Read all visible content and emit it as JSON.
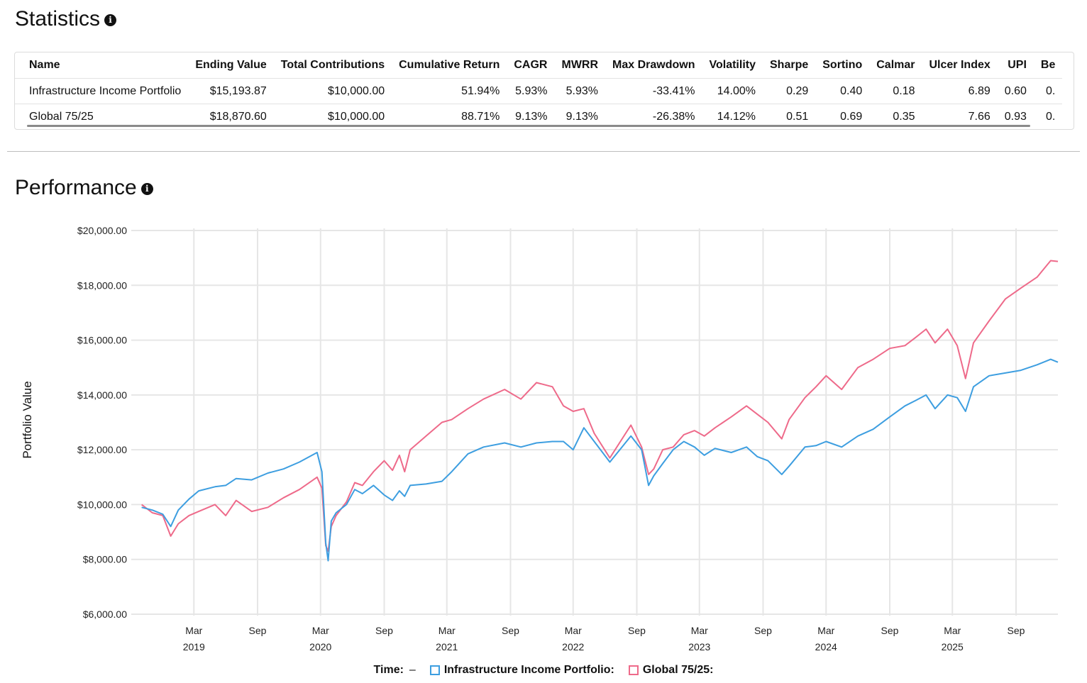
{
  "statistics": {
    "title": "Statistics",
    "info_icon": "info-icon",
    "columns": [
      "Name",
      "Ending Value",
      "Total Contributions",
      "Cumulative Return",
      "CAGR",
      "MWRR",
      "Max Drawdown",
      "Volatility",
      "Sharpe",
      "Sortino",
      "Calmar",
      "Ulcer Index",
      "UPI",
      "Be"
    ],
    "rows": [
      [
        "Infrastructure Income Portfolio",
        "$15,193.87",
        "$10,000.00",
        "51.94%",
        "5.93%",
        "5.93%",
        "-33.41%",
        "14.00%",
        "0.29",
        "0.40",
        "0.18",
        "6.89",
        "0.60",
        "0."
      ],
      [
        "Global 75/25",
        "$18,870.60",
        "$10,000.00",
        "88.71%",
        "9.13%",
        "9.13%",
        "-26.38%",
        "14.12%",
        "0.51",
        "0.69",
        "0.35",
        "7.66",
        "0.93",
        "0."
      ]
    ]
  },
  "performance": {
    "title": "Performance",
    "info_icon": "info-icon",
    "legend": {
      "time_label": "Time:",
      "time_value": "–",
      "series1_label": "Infrastructure Income Portfolio:",
      "series2_label": "Global 75/25:"
    }
  },
  "chart_data": {
    "type": "line",
    "title": "",
    "xlabel": "",
    "ylabel": "Portfolio Value",
    "ylim": [
      6000,
      20000
    ],
    "xlim": [
      "2018-09-01",
      "2025-12-31"
    ],
    "y_ticks": [
      "$6,000.00",
      "$8,000.00",
      "$10,000.00",
      "$12,000.00",
      "$14,000.00",
      "$16,000.00",
      "$18,000.00",
      "$20,000.00"
    ],
    "x_ticks": [
      {
        "date": "2019-03-01",
        "month": "Mar",
        "year": "2019"
      },
      {
        "date": "2019-09-01",
        "month": "Sep",
        "year": ""
      },
      {
        "date": "2020-03-01",
        "month": "Mar",
        "year": "2020"
      },
      {
        "date": "2020-09-01",
        "month": "Sep",
        "year": ""
      },
      {
        "date": "2021-03-01",
        "month": "Mar",
        "year": "2021"
      },
      {
        "date": "2021-09-01",
        "month": "Sep",
        "year": ""
      },
      {
        "date": "2022-03-01",
        "month": "Mar",
        "year": "2022"
      },
      {
        "date": "2022-09-01",
        "month": "Sep",
        "year": ""
      },
      {
        "date": "2023-03-01",
        "month": "Mar",
        "year": "2023"
      },
      {
        "date": "2023-09-01",
        "month": "Sep",
        "year": ""
      },
      {
        "date": "2024-03-01",
        "month": "Mar",
        "year": "2024"
      },
      {
        "date": "2024-09-01",
        "month": "Sep",
        "year": ""
      },
      {
        "date": "2025-03-01",
        "month": "Mar",
        "year": "2025"
      },
      {
        "date": "2025-09-01",
        "month": "Sep",
        "year": ""
      }
    ],
    "grid": true,
    "legend_position": "bottom",
    "series": [
      {
        "name": "Infrastructure Income Portfolio",
        "color": "#3d9ee0",
        "points": [
          [
            "2018-10-01",
            9900
          ],
          [
            "2018-11-01",
            9800
          ],
          [
            "2018-12-01",
            9650
          ],
          [
            "2018-12-24",
            9200
          ],
          [
            "2019-01-15",
            9800
          ],
          [
            "2019-02-15",
            10200
          ],
          [
            "2019-03-15",
            10500
          ],
          [
            "2019-05-01",
            10650
          ],
          [
            "2019-06-01",
            10700
          ],
          [
            "2019-07-01",
            10950
          ],
          [
            "2019-08-15",
            10900
          ],
          [
            "2019-10-01",
            11150
          ],
          [
            "2019-11-15",
            11300
          ],
          [
            "2019-12-31",
            11550
          ],
          [
            "2020-02-20",
            11900
          ],
          [
            "2020-03-05",
            11200
          ],
          [
            "2020-03-16",
            8600
          ],
          [
            "2020-03-23",
            7950
          ],
          [
            "2020-04-01",
            9400
          ],
          [
            "2020-04-15",
            9700
          ],
          [
            "2020-05-15",
            10000
          ],
          [
            "2020-06-08",
            10550
          ],
          [
            "2020-06-30",
            10400
          ],
          [
            "2020-08-01",
            10700
          ],
          [
            "2020-09-01",
            10350
          ],
          [
            "2020-09-25",
            10150
          ],
          [
            "2020-10-15",
            10500
          ],
          [
            "2020-10-30",
            10300
          ],
          [
            "2020-11-15",
            10700
          ],
          [
            "2020-12-31",
            10750
          ],
          [
            "2021-02-15",
            10850
          ],
          [
            "2021-03-15",
            11200
          ],
          [
            "2021-05-01",
            11850
          ],
          [
            "2021-06-15",
            12100
          ],
          [
            "2021-08-15",
            12250
          ],
          [
            "2021-10-01",
            12100
          ],
          [
            "2021-11-15",
            12250
          ],
          [
            "2021-12-31",
            12300
          ],
          [
            "2022-02-01",
            12300
          ],
          [
            "2022-03-01",
            12000
          ],
          [
            "2022-04-01",
            12800
          ],
          [
            "2022-05-01",
            12300
          ],
          [
            "2022-06-15",
            11550
          ],
          [
            "2022-08-15",
            12500
          ],
          [
            "2022-09-15",
            12000
          ],
          [
            "2022-10-05",
            10700
          ],
          [
            "2022-10-20",
            11050
          ],
          [
            "2022-11-15",
            11500
          ],
          [
            "2022-12-15",
            12000
          ],
          [
            "2023-01-15",
            12300
          ],
          [
            "2023-02-15",
            12100
          ],
          [
            "2023-03-15",
            11800
          ],
          [
            "2023-04-15",
            12050
          ],
          [
            "2023-06-01",
            11900
          ],
          [
            "2023-07-15",
            12100
          ],
          [
            "2023-08-15",
            11750
          ],
          [
            "2023-09-15",
            11600
          ],
          [
            "2023-10-25",
            11100
          ],
          [
            "2023-11-15",
            11400
          ],
          [
            "2023-12-31",
            12100
          ],
          [
            "2024-02-01",
            12150
          ],
          [
            "2024-03-01",
            12300
          ],
          [
            "2024-04-15",
            12100
          ],
          [
            "2024-06-01",
            12500
          ],
          [
            "2024-07-15",
            12750
          ],
          [
            "2024-09-01",
            13200
          ],
          [
            "2024-10-15",
            13600
          ],
          [
            "2024-11-15",
            13800
          ],
          [
            "2024-12-15",
            14000
          ],
          [
            "2025-01-10",
            13500
          ],
          [
            "2025-02-15",
            14000
          ],
          [
            "2025-03-15",
            13900
          ],
          [
            "2025-04-08",
            13400
          ],
          [
            "2025-05-01",
            14300
          ],
          [
            "2025-06-15",
            14700
          ],
          [
            "2025-08-01",
            14800
          ],
          [
            "2025-09-15",
            14900
          ],
          [
            "2025-11-01",
            15100
          ],
          [
            "2025-12-10",
            15300
          ],
          [
            "2025-12-31",
            15193.87
          ]
        ]
      },
      {
        "name": "Global 75/25",
        "color": "#ee6a8a",
        "points": [
          [
            "2018-10-01",
            10000
          ],
          [
            "2018-11-01",
            9700
          ],
          [
            "2018-12-01",
            9600
          ],
          [
            "2018-12-24",
            8850
          ],
          [
            "2019-01-15",
            9300
          ],
          [
            "2019-02-15",
            9600
          ],
          [
            "2019-03-15",
            9750
          ],
          [
            "2019-05-01",
            10000
          ],
          [
            "2019-06-01",
            9600
          ],
          [
            "2019-07-01",
            10150
          ],
          [
            "2019-08-15",
            9750
          ],
          [
            "2019-10-01",
            9900
          ],
          [
            "2019-11-15",
            10250
          ],
          [
            "2019-12-31",
            10550
          ],
          [
            "2020-02-20",
            11000
          ],
          [
            "2020-03-05",
            10600
          ],
          [
            "2020-03-16",
            8500
          ],
          [
            "2020-03-23",
            8300
          ],
          [
            "2020-04-01",
            9200
          ],
          [
            "2020-04-15",
            9600
          ],
          [
            "2020-05-15",
            10100
          ],
          [
            "2020-06-08",
            10800
          ],
          [
            "2020-06-30",
            10700
          ],
          [
            "2020-08-01",
            11200
          ],
          [
            "2020-09-01",
            11600
          ],
          [
            "2020-09-25",
            11250
          ],
          [
            "2020-10-15",
            11800
          ],
          [
            "2020-10-30",
            11200
          ],
          [
            "2020-11-15",
            12000
          ],
          [
            "2020-12-31",
            12500
          ],
          [
            "2021-02-15",
            13000
          ],
          [
            "2021-03-15",
            13100
          ],
          [
            "2021-05-01",
            13500
          ],
          [
            "2021-06-15",
            13850
          ],
          [
            "2021-08-15",
            14200
          ],
          [
            "2021-10-01",
            13850
          ],
          [
            "2021-11-15",
            14450
          ],
          [
            "2021-12-31",
            14300
          ],
          [
            "2022-02-01",
            13600
          ],
          [
            "2022-03-01",
            13400
          ],
          [
            "2022-04-01",
            13500
          ],
          [
            "2022-05-01",
            12600
          ],
          [
            "2022-06-15",
            11700
          ],
          [
            "2022-08-15",
            12900
          ],
          [
            "2022-09-15",
            12100
          ],
          [
            "2022-10-05",
            11100
          ],
          [
            "2022-10-20",
            11300
          ],
          [
            "2022-11-15",
            12000
          ],
          [
            "2022-12-15",
            12100
          ],
          [
            "2023-01-15",
            12550
          ],
          [
            "2023-02-15",
            12700
          ],
          [
            "2023-03-15",
            12500
          ],
          [
            "2023-04-15",
            12800
          ],
          [
            "2023-06-01",
            13200
          ],
          [
            "2023-07-15",
            13600
          ],
          [
            "2023-08-15",
            13300
          ],
          [
            "2023-09-15",
            13000
          ],
          [
            "2023-10-25",
            12400
          ],
          [
            "2023-11-15",
            13100
          ],
          [
            "2023-12-31",
            13900
          ],
          [
            "2024-02-01",
            14300
          ],
          [
            "2024-03-01",
            14700
          ],
          [
            "2024-04-15",
            14200
          ],
          [
            "2024-06-01",
            15000
          ],
          [
            "2024-07-15",
            15300
          ],
          [
            "2024-09-01",
            15700
          ],
          [
            "2024-10-15",
            15800
          ],
          [
            "2024-11-15",
            16100
          ],
          [
            "2024-12-15",
            16400
          ],
          [
            "2025-01-10",
            15900
          ],
          [
            "2025-02-15",
            16400
          ],
          [
            "2025-03-15",
            15800
          ],
          [
            "2025-04-08",
            14600
          ],
          [
            "2025-05-01",
            15900
          ],
          [
            "2025-06-15",
            16700
          ],
          [
            "2025-08-01",
            17500
          ],
          [
            "2025-09-15",
            17900
          ],
          [
            "2025-11-01",
            18300
          ],
          [
            "2025-12-10",
            18900
          ],
          [
            "2025-12-31",
            18870.6
          ]
        ]
      }
    ]
  }
}
